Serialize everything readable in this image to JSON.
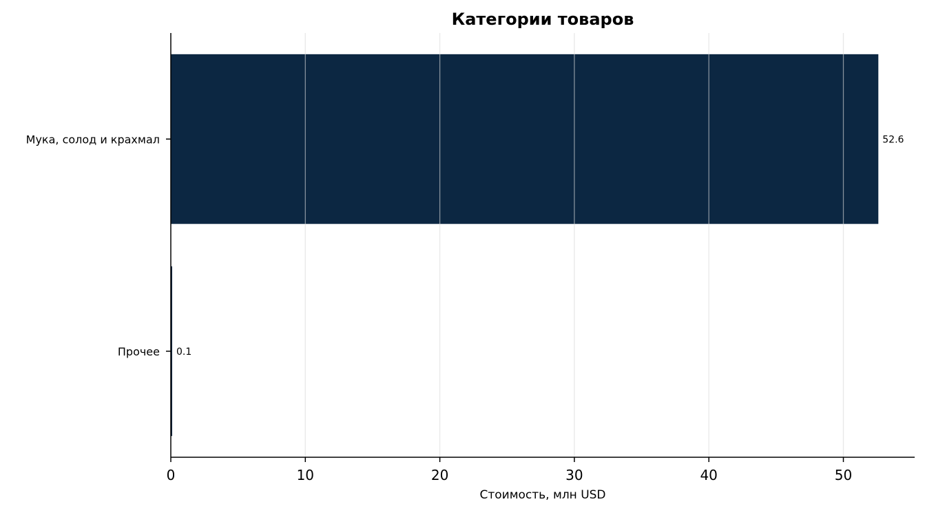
{
  "chart_data": {
    "type": "bar",
    "orientation": "horizontal",
    "title": "Категории товаров",
    "xlabel": "Стоимость, млн USD",
    "ylabel": "",
    "categories": [
      "Мука, солод и крахмал",
      "Прочее"
    ],
    "values": [
      52.6,
      0.1
    ],
    "value_labels": [
      "52.6",
      "0.1"
    ],
    "xlim": [
      0,
      55.3
    ],
    "xticks": [
      0,
      10,
      20,
      30,
      40,
      50
    ],
    "grid": "vertical",
    "bar_color": "#0c2742",
    "grid_color": "#e6e6e6"
  }
}
